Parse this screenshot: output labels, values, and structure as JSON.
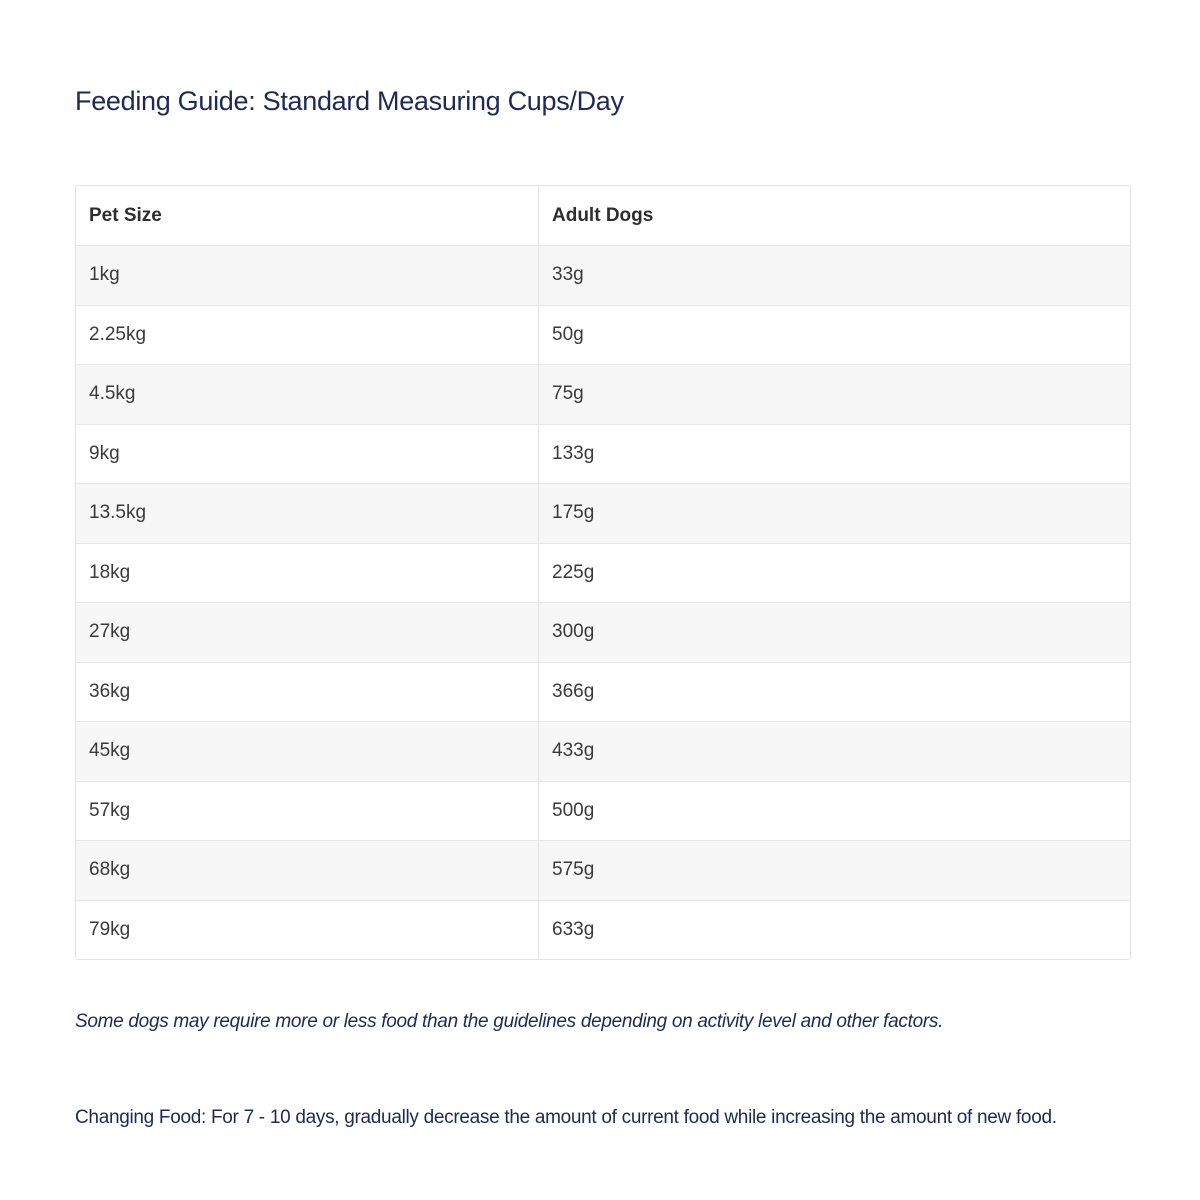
{
  "title": "Feeding Guide: Standard Measuring Cups/Day",
  "table": {
    "headers": [
      "Pet Size",
      "Adult Dogs"
    ],
    "rows": [
      [
        "1kg",
        "33g"
      ],
      [
        "2.25kg",
        "50g"
      ],
      [
        "4.5kg",
        "75g"
      ],
      [
        "9kg",
        "133g"
      ],
      [
        "13.5kg",
        "175g"
      ],
      [
        "18kg",
        "225g"
      ],
      [
        "27kg",
        "300g"
      ],
      [
        "36kg",
        "366g"
      ],
      [
        "45kg",
        "433g"
      ],
      [
        "57kg",
        "500g"
      ],
      [
        "68kg",
        "575g"
      ],
      [
        "79kg",
        "633g"
      ]
    ]
  },
  "note": "Some dogs may require more or less food than the guidelines depending on activity level and other factors.",
  "changing_food": "Changing Food: For 7 - 10 days, gradually decrease the amount of current food while increasing the amount of new food."
}
